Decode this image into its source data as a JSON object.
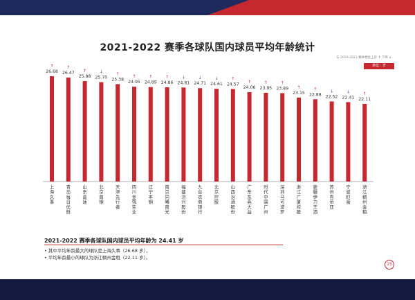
{
  "header": {
    "title": "2021-2022 赛季各球队国内球员平均年龄统计",
    "legend_note_prefix": "与 2020-2021 赛季相比上升",
    "legend_up_glyph": "↑",
    "legend_note_middle": "下降",
    "legend_down_glyph": "↓",
    "unit_label": "单位：岁"
  },
  "colors": {
    "bar": "#c62830",
    "up_arrow": "#c62830",
    "down_arrow": "#3355aa",
    "accent": "#c62830",
    "navy": "#1f2a5c"
  },
  "chart_data": {
    "type": "bar",
    "categories": [
      "上海久事",
      "青岛每日优鲜",
      "山东高速",
      "北京首钢",
      "天津先行者",
      "四川金强实业",
      "辽宁本钢",
      "南京同曦宙光",
      "福建浔兴股份",
      "九台农商银行",
      "北京控股",
      "山西汾酒股份",
      "广东东莞大益",
      "时代中国广州",
      "深圳马可波罗",
      "浙江广厦控股",
      "新疆伊力王酒",
      "苏州肯帝亚",
      "宁波町渡",
      "浙江稠州金租"
    ],
    "values": [
      26.68,
      26.47,
      25.88,
      25.7,
      25.38,
      24.95,
      24.89,
      24.86,
      24.81,
      24.71,
      24.61,
      24.57,
      24.06,
      23.95,
      23.89,
      23.15,
      22.88,
      22.52,
      22.41,
      22.11
    ],
    "value_labels": [
      "26.68",
      "26.47",
      "25.88",
      "25.70",
      "25.38",
      "24.95",
      "24.89",
      "24.86",
      "24.81",
      "24.71",
      "24.61",
      "24.57",
      "24.06",
      "23.95",
      "23.89",
      "23.15",
      "22.88",
      "22.52",
      "22.41",
      "22.11"
    ],
    "change_vs_last_season": [
      "up",
      "up",
      "up",
      "down",
      "up",
      "up",
      "up",
      "up",
      "down",
      "down",
      "down",
      "up",
      "up",
      "up",
      "up",
      "up",
      "up",
      "down",
      "down",
      "up"
    ],
    "title": "2021-2022 赛季各球队国内球员平均年龄统计",
    "ylabel": "单位：岁",
    "ylim": [
      0,
      27
    ],
    "grid": false,
    "legend_position": "top-right"
  },
  "summary": {
    "title": "2021-2022 赛季各球队国内球员平均年龄为 24.41 岁",
    "bullets": [
      "其中平均年龄最大的球队是上海久事（26.68 岁），",
      "平均年龄最小的球队为浙江稠州金租（22.11 岁）。"
    ]
  },
  "page_number": "15"
}
